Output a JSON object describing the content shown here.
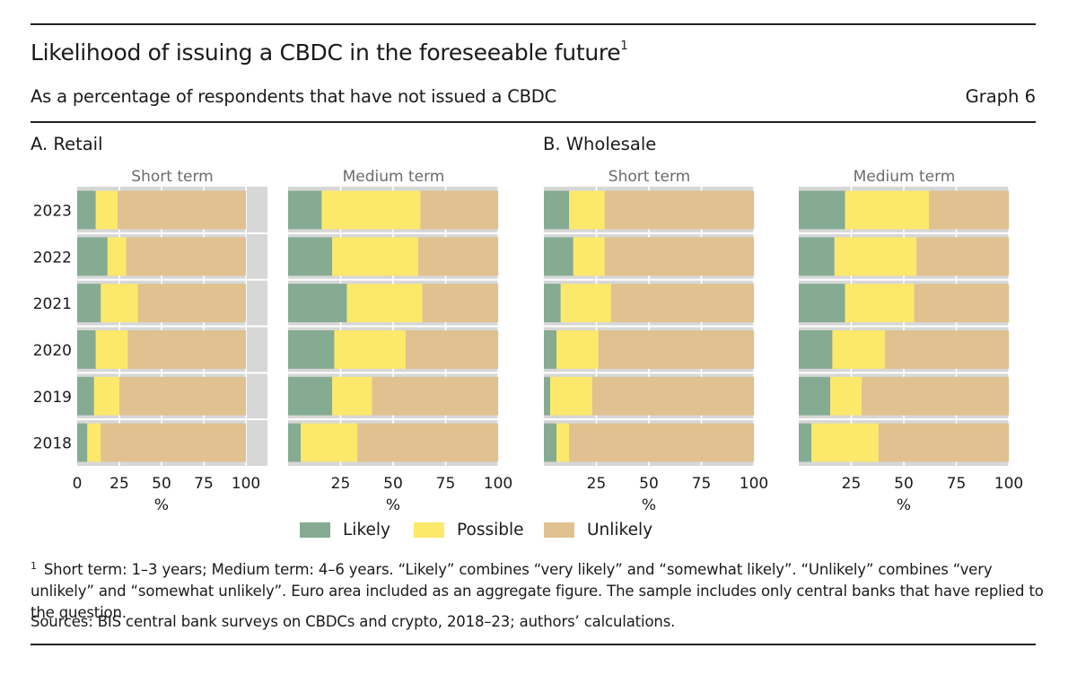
{
  "header": {
    "title": "Likelihood of issuing a CBDC in the foreseeable future",
    "title_footnote_marker": "1",
    "subtitle": "As a percentage of respondents that have not issued a CBDC",
    "graph_number": "Graph 6"
  },
  "colors": {
    "likely": "#85ab93",
    "possible": "#fce86b",
    "unlikely": "#e0c190",
    "plot_bg": "#d7d7d7",
    "grid": "#ffffff"
  },
  "legend": [
    {
      "key": "likely",
      "label": "Likely"
    },
    {
      "key": "possible",
      "label": "Possible"
    },
    {
      "key": "unlikely",
      "label": "Unlikely"
    }
  ],
  "footnote": {
    "marker": "1",
    "text": "Short term: 1–3 years; Medium term: 4–6 years. “Likely” combines “very likely” and “somewhat likely”. “Unlikely” combines “very unlikely” and “somewhat unlikely”. Euro area included as an aggregate figure. The sample includes only central banks that have replied to the question."
  },
  "sources": "Sources: BIS central bank surveys on CBDCs and crypto, 2018–23; authors’ calculations.",
  "chart_data": [
    {
      "type": "bar",
      "orientation": "horizontal",
      "stacked": true,
      "group": "A. Retail",
      "title": "Short term",
      "xlabel": "%",
      "xlim": [
        0,
        100
      ],
      "xticks": [
        "0",
        "25",
        "50",
        "75",
        "100"
      ],
      "categories": [
        "2023",
        "2022",
        "2021",
        "2020",
        "2019",
        "2018"
      ],
      "series": [
        {
          "name": "Likely",
          "values": [
            11,
            18,
            14,
            11,
            10,
            6
          ]
        },
        {
          "name": "Possible",
          "values": [
            13,
            11,
            22,
            19,
            15,
            8
          ]
        },
        {
          "name": "Unlikely",
          "values": [
            76,
            71,
            64,
            70,
            75,
            86
          ]
        }
      ],
      "grid": true
    },
    {
      "type": "bar",
      "orientation": "horizontal",
      "stacked": true,
      "group": "A. Retail",
      "title": "Medium term",
      "xlabel": "%",
      "xlim": [
        0,
        100
      ],
      "xticks": [
        "",
        "25",
        "50",
        "75",
        "100"
      ],
      "categories": [
        "2023",
        "2022",
        "2021",
        "2020",
        "2019",
        "2018"
      ],
      "series": [
        {
          "name": "Likely",
          "values": [
            16,
            21,
            28,
            22,
            21,
            6
          ]
        },
        {
          "name": "Possible",
          "values": [
            47,
            41,
            36,
            34,
            19,
            27
          ]
        },
        {
          "name": "Unlikely",
          "values": [
            37,
            38,
            36,
            44,
            60,
            67
          ]
        }
      ],
      "grid": true
    },
    {
      "type": "bar",
      "orientation": "horizontal",
      "stacked": true,
      "group": "B. Wholesale",
      "title": "Short term",
      "xlabel": "%",
      "xlim": [
        0,
        100
      ],
      "xticks": [
        "",
        "25",
        "50",
        "75",
        "100"
      ],
      "categories": [
        "2023",
        "2022",
        "2021",
        "2020",
        "2019",
        "2018"
      ],
      "series": [
        {
          "name": "Likely",
          "values": [
            12,
            14,
            8,
            6,
            3,
            6
          ]
        },
        {
          "name": "Possible",
          "values": [
            17,
            15,
            24,
            20,
            20,
            6
          ]
        },
        {
          "name": "Unlikely",
          "values": [
            71,
            71,
            68,
            74,
            77,
            88
          ]
        }
      ],
      "grid": true
    },
    {
      "type": "bar",
      "orientation": "horizontal",
      "stacked": true,
      "group": "B. Wholesale",
      "title": "Medium term",
      "xlabel": "%",
      "xlim": [
        0,
        100
      ],
      "xticks": [
        "",
        "25",
        "50",
        "75",
        "100"
      ],
      "categories": [
        "2023",
        "2022",
        "2021",
        "2020",
        "2019",
        "2018"
      ],
      "series": [
        {
          "name": "Likely",
          "values": [
            22,
            17,
            22,
            16,
            15,
            6
          ]
        },
        {
          "name": "Possible",
          "values": [
            40,
            39,
            33,
            25,
            15,
            32
          ]
        },
        {
          "name": "Unlikely",
          "values": [
            38,
            44,
            45,
            59,
            70,
            62
          ]
        }
      ],
      "grid": true
    }
  ]
}
